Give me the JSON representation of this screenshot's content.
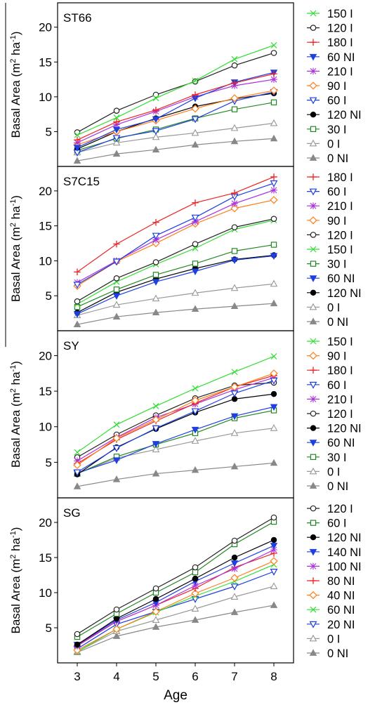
{
  "ylabel_main": "Basal Area (m",
  "ylabel_sup2": "2",
  "ylabel_mid": " ha",
  "ylabel_sup1": "-1",
  "ylabel_end": ")",
  "xlabel": "Age",
  "styles": {
    "150 I": {
      "color": "#33dd33",
      "marker": "x"
    },
    "120 I": {
      "color": "#222222",
      "marker": "circle-open"
    },
    "180 I": {
      "color": "#ee2222",
      "marker": "plus"
    },
    "60 NI": {
      "color": "#1f3fe0",
      "marker": "tri-down-filled"
    },
    "210 I": {
      "color": "#aa33dd",
      "marker": "star"
    },
    "90 I": {
      "color": "#ff7f1a",
      "marker": "diamond-open"
    },
    "60 I": {
      "color": "#1f3fe0",
      "marker": "tri-down-open"
    },
    "120 NI": {
      "color": "#000000",
      "marker": "circle-filled"
    },
    "30 I": {
      "color": "#228822",
      "marker": "square-open"
    },
    "0 I": {
      "color": "#999999",
      "marker": "tri-up-open"
    },
    "0 NI": {
      "color": "#888888",
      "marker": "tri-up-filled"
    },
    "140 NI": {
      "color": "#1f3fe0",
      "marker": "tri-down-filled"
    },
    "100 NI": {
      "color": "#aa33dd",
      "marker": "star"
    },
    "80 NI": {
      "color": "#ee2222",
      "marker": "plus"
    },
    "40 NI": {
      "color": "#ff7f1a",
      "marker": "diamond-open"
    },
    "20 NI": {
      "color": "#1f3fe0",
      "marker": "tri-down-open"
    },
    "60 I (SG)": {
      "color": "#228822",
      "marker": "square-open"
    },
    "60 NI (SG)": {
      "color": "#33dd33",
      "marker": "x"
    }
  },
  "chart_data": [
    {
      "type": "line",
      "title": "ST66",
      "x": [
        3,
        4,
        5,
        6,
        7,
        8
      ],
      "xlim": [
        2.5,
        8.5
      ],
      "ylim": [
        0,
        23.5
      ],
      "yticks": [
        5,
        10,
        15,
        20
      ],
      "series": [
        {
          "name": "150 I",
          "values": [
            4.5,
            7.0,
            9.8,
            12.3,
            15.4,
            17.4
          ]
        },
        {
          "name": "120 I",
          "values": [
            4.9,
            8.0,
            10.3,
            12.2,
            14.5,
            16.3
          ]
        },
        {
          "name": "180 I",
          "values": [
            3.8,
            6.4,
            8.1,
            10.3,
            12.0,
            13.3
          ]
        },
        {
          "name": "60 NI",
          "values": [
            2.7,
            5.3,
            6.8,
            9.8,
            12.1,
            13.5
          ]
        },
        {
          "name": "210 I",
          "values": [
            3.4,
            6.0,
            7.9,
            10.0,
            11.6,
            12.5
          ]
        },
        {
          "name": "90 I",
          "values": [
            3.1,
            5.0,
            6.6,
            8.3,
            9.8,
            10.9
          ]
        },
        {
          "name": "60 I",
          "values": [
            2.0,
            4.1,
            5.1,
            6.8,
            9.4,
            10.7
          ]
        },
        {
          "name": "120 NI",
          "values": [
            2.5,
            5.0,
            6.9,
            8.6,
            9.7,
            10.5
          ]
        },
        {
          "name": "30 I",
          "values": [
            2.3,
            4.0,
            5.3,
            6.9,
            8.2,
            9.2
          ]
        },
        {
          "name": "0 I",
          "values": [
            2.0,
            3.4,
            4.2,
            4.8,
            5.5,
            6.2
          ]
        },
        {
          "name": "0 NI",
          "values": [
            0.8,
            1.8,
            2.4,
            3.1,
            3.6,
            4.0
          ]
        }
      ]
    },
    {
      "type": "line",
      "title": "S7C15",
      "x": [
        3,
        4,
        5,
        6,
        7,
        8
      ],
      "xlim": [
        2.5,
        8.5
      ],
      "ylim": [
        0,
        23.5
      ],
      "yticks": [
        5,
        10,
        15,
        20
      ],
      "series": [
        {
          "name": "180 I",
          "values": [
            8.4,
            12.4,
            15.5,
            18.3,
            19.7,
            22.0
          ]
        },
        {
          "name": "60 I",
          "values": [
            6.6,
            9.9,
            13.6,
            16.2,
            19.2,
            21.1
          ]
        },
        {
          "name": "210 I",
          "values": [
            6.9,
            10.0,
            13.0,
            15.6,
            18.2,
            20.1
          ]
        },
        {
          "name": "90 I",
          "values": [
            6.4,
            9.9,
            12.5,
            15.3,
            17.5,
            18.7
          ]
        },
        {
          "name": "120 I",
          "values": [
            4.2,
            7.5,
            9.8,
            12.4,
            14.8,
            16.0
          ]
        },
        {
          "name": "150 I",
          "values": [
            3.8,
            7.0,
            9.5,
            11.8,
            14.5,
            15.8
          ]
        },
        {
          "name": "30 I",
          "values": [
            3.4,
            5.9,
            8.0,
            9.6,
            11.4,
            12.3
          ]
        },
        {
          "name": "60 NI",
          "values": [
            2.4,
            5.0,
            7.0,
            8.5,
            10.1,
            10.7
          ]
        },
        {
          "name": "120 NI",
          "values": [
            2.6,
            5.5,
            7.4,
            8.9,
            10.2,
            10.8
          ]
        },
        {
          "name": "0 I",
          "values": [
            2.2,
            3.7,
            4.6,
            5.4,
            6.1,
            6.7
          ]
        },
        {
          "name": "0 NI",
          "values": [
            0.9,
            2.0,
            2.6,
            3.1,
            3.5,
            3.9
          ]
        }
      ]
    },
    {
      "type": "line",
      "title": "SY",
      "x": [
        3,
        4,
        5,
        6,
        7,
        8
      ],
      "xlim": [
        2.5,
        8.5
      ],
      "ylim": [
        0,
        23.5
      ],
      "yticks": [
        5,
        10,
        15,
        20
      ],
      "series": [
        {
          "name": "150 I",
          "values": [
            6.4,
            10.3,
            12.9,
            15.4,
            17.7,
            19.9
          ]
        },
        {
          "name": "90 I",
          "values": [
            4.6,
            8.4,
            11.0,
            13.7,
            15.6,
            17.5
          ]
        },
        {
          "name": "180 I",
          "values": [
            4.8,
            8.2,
            10.8,
            13.3,
            15.6,
            17.2
          ]
        },
        {
          "name": "60 I",
          "values": [
            3.6,
            7.0,
            9.8,
            12.2,
            14.7,
            16.5
          ]
        },
        {
          "name": "210 I",
          "values": [
            5.2,
            8.5,
            11.3,
            13.2,
            15.2,
            16.9
          ]
        },
        {
          "name": "120 I",
          "values": [
            5.7,
            8.9,
            11.6,
            14.0,
            15.8,
            16.2
          ]
        },
        {
          "name": "120 NI",
          "values": [
            3.3,
            7.1,
            9.7,
            12.0,
            13.9,
            14.6
          ]
        },
        {
          "name": "60 NI",
          "values": [
            3.5,
            5.3,
            7.6,
            9.6,
            11.5,
            12.8
          ]
        },
        {
          "name": "30 I",
          "values": [
            3.4,
            5.8,
            7.5,
            9.1,
            11.2,
            12.3
          ]
        },
        {
          "name": "0 I",
          "values": [
            3.4,
            5.6,
            6.8,
            8.0,
            9.1,
            9.8
          ]
        },
        {
          "name": "0 NI",
          "values": [
            1.6,
            2.6,
            3.4,
            3.9,
            4.4,
            4.9
          ]
        }
      ]
    },
    {
      "type": "line",
      "title": "SG",
      "x": [
        3,
        4,
        5,
        6,
        7,
        8
      ],
      "xlim": [
        2.5,
        8.5
      ],
      "ylim": [
        0,
        23.5
      ],
      "yticks": [
        5,
        10,
        15,
        20
      ],
      "series": [
        {
          "name": "120 I",
          "style": "120 I",
          "values": [
            4.1,
            7.6,
            10.6,
            13.6,
            17.4,
            20.7
          ]
        },
        {
          "name": "60 I",
          "style": "60 I (SG)",
          "values": [
            3.7,
            7.0,
            10.0,
            12.9,
            16.9,
            20.1
          ]
        },
        {
          "name": "120 NI",
          "style": "120 NI",
          "values": [
            2.6,
            6.3,
            9.1,
            12.0,
            15.0,
            17.5
          ]
        },
        {
          "name": "140 NI",
          "style": "140 NI",
          "values": [
            2.6,
            6.1,
            8.6,
            11.6,
            14.2,
            16.7
          ]
        },
        {
          "name": "100 NI",
          "style": "100 NI",
          "values": [
            2.4,
            5.9,
            8.2,
            11.0,
            13.4,
            16.1
          ]
        },
        {
          "name": "80 NI",
          "style": "80 NI",
          "values": [
            2.5,
            5.9,
            8.2,
            10.6,
            13.6,
            15.6
          ]
        },
        {
          "name": "40 NI",
          "style": "40 NI",
          "values": [
            1.8,
            4.8,
            7.3,
            9.9,
            12.1,
            14.5
          ]
        },
        {
          "name": "60 NI",
          "style": "60 NI (SG)",
          "values": [
            1.6,
            4.8,
            7.2,
            9.5,
            11.6,
            14.0
          ]
        },
        {
          "name": "20 NI",
          "style": "20 NI",
          "values": [
            2.0,
            5.5,
            7.3,
            9.1,
            10.9,
            13.0
          ]
        },
        {
          "name": "0 I",
          "style": "0 I",
          "values": [
            1.6,
            4.5,
            6.1,
            7.7,
            9.4,
            10.9
          ]
        },
        {
          "name": "0 NI",
          "style": "0 NI",
          "values": [
            1.5,
            3.8,
            5.1,
            6.1,
            7.2,
            8.2
          ]
        }
      ]
    }
  ]
}
